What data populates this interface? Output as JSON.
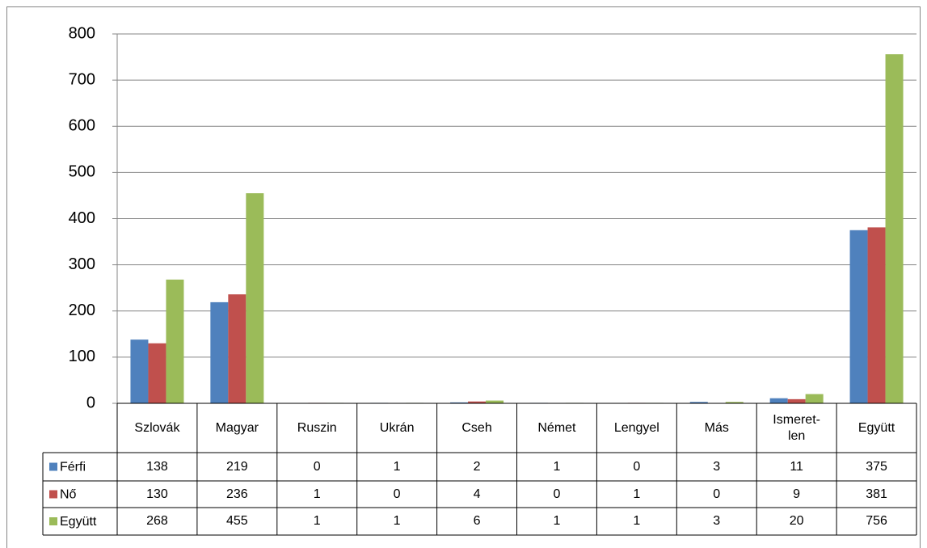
{
  "chart_data": {
    "type": "bar",
    "categories": [
      "Szlovák",
      "Magyar",
      "Ruszin",
      "Ukrán",
      "Cseh",
      "Német",
      "Lengyel",
      "Más",
      "Ismeret-\nlen",
      "Együtt"
    ],
    "series": [
      {
        "name": "Férfi",
        "color": "#4f81bd",
        "values": [
          138,
          219,
          0,
          1,
          2,
          1,
          0,
          3,
          11,
          375
        ]
      },
      {
        "name": "Nő",
        "color": "#c0504d",
        "values": [
          130,
          236,
          1,
          0,
          4,
          0,
          1,
          0,
          9,
          381
        ]
      },
      {
        "name": "Együtt",
        "color": "#9bbb59",
        "values": [
          268,
          455,
          1,
          1,
          6,
          1,
          1,
          3,
          20,
          756
        ]
      }
    ],
    "ylim": [
      0,
      800
    ],
    "yticks": [
      0,
      100,
      200,
      300,
      400,
      500,
      600,
      700,
      800
    ],
    "grid": true,
    "data_table": true
  }
}
